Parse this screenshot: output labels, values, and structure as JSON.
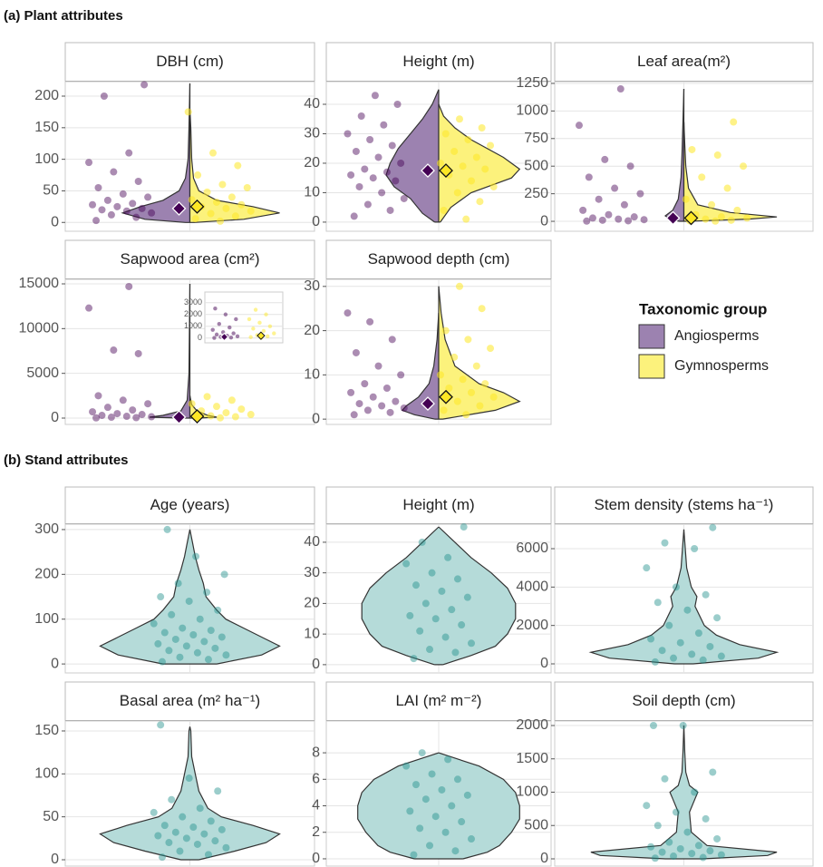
{
  "figure": {
    "sections": [
      "(a) Plant attributes",
      "(b) Stand attributes"
    ],
    "legend_title": "Taxonomic group"
  },
  "chart_data": [
    {
      "type": "violin",
      "title": "DBH (cm)",
      "ylim": [
        -14,
        223
      ],
      "yticks": [
        0,
        50,
        100,
        150,
        200
      ],
      "grid": true,
      "series": [
        {
          "name": "Angiosperms",
          "color": "#440154",
          "fill": "#9c82b0",
          "mean": 22,
          "values": [
            3,
            8,
            12,
            15,
            18,
            20,
            22,
            25,
            28,
            30,
            35,
            40,
            45,
            55,
            65,
            80,
            95,
            110,
            200,
            218
          ],
          "density": {
            "y": [
              0,
              5,
              15,
              25,
              35,
              50,
              70,
              100,
              150,
              220
            ],
            "width": [
              0.05,
              0.5,
              0.75,
              0.55,
              0.3,
              0.12,
              0.05,
              0.02,
              0.01,
              0
            ]
          }
        },
        {
          "name": "Gymnosperms",
          "color": "#fde725",
          "fill": "#fcf27c",
          "mean": 25,
          "values": [
            2,
            6,
            10,
            14,
            18,
            22,
            25,
            28,
            32,
            36,
            40,
            48,
            55,
            60,
            75,
            90,
            110,
            175
          ],
          "density": {
            "y": [
              0,
              5,
              15,
              25,
              35,
              50,
              70,
              100,
              150,
              180
            ],
            "width": [
              0.05,
              0.6,
              1.0,
              0.7,
              0.3,
              0.1,
              0.04,
              0.02,
              0.01,
              0
            ]
          }
        }
      ]
    },
    {
      "type": "violin",
      "title": "Height (m)",
      "ylim": [
        -3.1,
        47.7
      ],
      "yticks": [
        0,
        10,
        20,
        30,
        40
      ],
      "grid": true,
      "series": [
        {
          "color": "#440154",
          "fill": "#9c82b0",
          "mean": 17.5,
          "values": [
            2,
            4,
            6,
            8,
            10,
            12,
            14,
            15,
            16,
            17,
            18,
            20,
            22,
            24,
            26,
            28,
            30,
            33,
            36,
            40,
            43
          ],
          "density": {
            "y": [
              0,
              3,
              8,
              12,
              16,
              20,
              25,
              30,
              35,
              40,
              45
            ],
            "width": [
              0.05,
              0.2,
              0.35,
              0.55,
              0.65,
              0.6,
              0.5,
              0.35,
              0.2,
              0.08,
              0
            ]
          }
        },
        {
          "color": "#fde725",
          "fill": "#fcf27c",
          "mean": 17.5,
          "values": [
            1,
            4,
            7,
            10,
            12,
            14,
            16,
            18,
            19,
            20,
            22,
            24,
            26,
            28,
            30,
            32,
            35
          ],
          "density": {
            "y": [
              0,
              5,
              10,
              15,
              18,
              22,
              28,
              32,
              36,
              40
            ],
            "width": [
              0.02,
              0.15,
              0.4,
              0.9,
              1.0,
              0.8,
              0.4,
              0.2,
              0.06,
              0
            ]
          }
        }
      ]
    },
    {
      "type": "violin",
      "title": "Leaf area(m²)",
      "ylim": [
        -90,
        1266
      ],
      "yticks": [
        0,
        250,
        500,
        750,
        1000,
        1250
      ],
      "grid": true,
      "series": [
        {
          "color": "#440154",
          "fill": "#9c82b0",
          "mean": 30,
          "values": [
            2,
            5,
            10,
            15,
            20,
            30,
            40,
            60,
            100,
            150,
            200,
            250,
            300,
            400,
            500,
            560,
            870,
            1200
          ],
          "density": {
            "y": [
              0,
              20,
              50,
              100,
              200,
              400,
              600,
              900,
              1200
            ],
            "width": [
              0.05,
              0.15,
              0.2,
              0.12,
              0.06,
              0.03,
              0.02,
              0.01,
              0
            ]
          }
        },
        {
          "color": "#fde725",
          "fill": "#fcf27c",
          "mean": 30,
          "values": [
            2,
            5,
            10,
            20,
            30,
            40,
            60,
            100,
            150,
            200,
            300,
            400,
            500,
            600,
            650,
            900
          ],
          "density": {
            "y": [
              0,
              20,
              40,
              80,
              150,
              300,
              500,
              700,
              900
            ],
            "width": [
              0.05,
              0.7,
              1.0,
              0.5,
              0.15,
              0.05,
              0.02,
              0.01,
              0
            ]
          }
        }
      ]
    },
    {
      "type": "violin",
      "title": "Sapwood area (cm²)",
      "ylim": [
        -709,
        15507
      ],
      "yticks": [
        0,
        5000,
        10000,
        15000
      ],
      "grid": true,
      "inset": {
        "ylim": [
          -400,
          3900
        ],
        "yticks": [
          0,
          1000,
          2000,
          3000
        ]
      },
      "series": [
        {
          "color": "#440154",
          "fill": "#9c82b0",
          "mean": 100,
          "values": [
            20,
            50,
            100,
            150,
            200,
            300,
            400,
            500,
            700,
            900,
            1200,
            1600,
            2000,
            2500,
            7200,
            7600,
            12300,
            14700
          ],
          "density": {
            "y": [
              0,
              100,
              300,
              800,
              2000,
              5000,
              10000,
              15000
            ],
            "width": [
              0.1,
              0.45,
              0.3,
              0.1,
              0.03,
              0.01,
              0.005,
              0
            ]
          }
        },
        {
          "color": "#fde725",
          "fill": "#fcf27c",
          "mean": 200,
          "values": [
            30,
            80,
            150,
            250,
            400,
            600,
            800,
            1000,
            1300,
            1600,
            2000,
            2400
          ],
          "density": {
            "y": [
              0,
              100,
              300,
              800,
              1500,
              2500
            ],
            "width": [
              0.1,
              0.3,
              0.2,
              0.08,
              0.02,
              0
            ]
          }
        }
      ]
    },
    {
      "type": "violin",
      "title": "Sapwood depth (cm)",
      "ylim": [
        -1.2,
        31.6
      ],
      "yticks": [
        0,
        10,
        20,
        30
      ],
      "grid": true,
      "series": [
        {
          "color": "#440154",
          "fill": "#9c82b0",
          "mean": 3.5,
          "values": [
            1,
            1.5,
            2,
            2.5,
            3,
            3.5,
            4,
            5,
            6,
            7,
            8,
            10,
            12,
            15,
            18,
            22,
            24
          ],
          "density": {
            "y": [
              0,
              1,
              2,
              3,
              5,
              8,
              12,
              18,
              24
            ],
            "width": [
              0.05,
              0.3,
              0.45,
              0.4,
              0.25,
              0.12,
              0.06,
              0.02,
              0
            ]
          }
        },
        {
          "color": "#fde725",
          "fill": "#fcf27c",
          "mean": 5,
          "values": [
            1,
            2,
            3,
            4,
            5,
            6,
            7,
            8,
            9,
            10,
            12,
            14,
            16,
            18,
            20,
            25,
            30
          ],
          "density": {
            "y": [
              0,
              2,
              4,
              6,
              8,
              12,
              18,
              24,
              30
            ],
            "width": [
              0.05,
              0.7,
              1.0,
              0.8,
              0.5,
              0.2,
              0.08,
              0.03,
              0
            ]
          }
        }
      ]
    },
    {
      "type": "violin",
      "title": "Age (years)",
      "ylim": [
        -20,
        312
      ],
      "yticks": [
        0,
        100,
        200,
        300
      ],
      "grid": true,
      "series": [
        {
          "color": "#21918c",
          "fill": "#b5dbd9",
          "values": [
            5,
            10,
            15,
            20,
            25,
            30,
            35,
            40,
            45,
            50,
            55,
            60,
            65,
            70,
            75,
            80,
            90,
            100,
            110,
            120,
            140,
            150,
            160,
            180,
            200,
            240,
            300
          ],
          "density": {
            "y": [
              0,
              20,
              40,
              60,
              80,
              100,
              120,
              150,
              180,
              210,
              240,
              270,
              300
            ],
            "width": [
              0.3,
              0.8,
              1.0,
              0.8,
              0.6,
              0.4,
              0.3,
              0.18,
              0.15,
              0.1,
              0.06,
              0.03,
              0
            ]
          }
        }
      ]
    },
    {
      "type": "violin",
      "title": "Height (m)",
      "ylim": [
        -2.7,
        45.9
      ],
      "yticks": [
        0,
        10,
        20,
        30,
        40
      ],
      "grid": true,
      "series": [
        {
          "color": "#21918c",
          "fill": "#b5dbd9",
          "values": [
            2,
            4,
            5,
            7,
            9,
            11,
            13,
            15,
            16,
            18,
            20,
            22,
            24,
            26,
            28,
            30,
            33,
            35,
            40,
            45
          ],
          "density": {
            "y": [
              0,
              3,
              6,
              10,
              15,
              20,
              25,
              30,
              35,
              40,
              45
            ],
            "width": [
              0.05,
              0.4,
              0.7,
              0.85,
              0.95,
              0.95,
              0.85,
              0.65,
              0.4,
              0.2,
              0
            ]
          }
        }
      ]
    },
    {
      "type": "violin",
      "title": "Stem density (stems ha⁻¹)",
      "ylim": [
        -472,
        7275
      ],
      "yticks": [
        0,
        2000,
        4000,
        6000
      ],
      "grid": true,
      "series": [
        {
          "color": "#21918c",
          "fill": "#b5dbd9",
          "values": [
            100,
            200,
            300,
            400,
            500,
            700,
            900,
            1100,
            1300,
            1600,
            2000,
            2400,
            2800,
            3200,
            3600,
            4000,
            5000,
            6000,
            6300,
            7100
          ],
          "density": {
            "y": [
              0,
              300,
              600,
              1000,
              1500,
              2000,
              3000,
              3500,
              4000,
              5000,
              7000
            ],
            "width": [
              0.1,
              0.8,
              1.0,
              0.6,
              0.35,
              0.22,
              0.12,
              0.14,
              0.08,
              0.03,
              0
            ]
          }
        }
      ]
    },
    {
      "type": "violin",
      "title": "Basal area (m² ha⁻¹)",
      "ylim": [
        -7.4,
        161.6
      ],
      "yticks": [
        0,
        50,
        100,
        150
      ],
      "grid": true,
      "series": [
        {
          "color": "#21918c",
          "fill": "#b5dbd9",
          "values": [
            3,
            6,
            10,
            14,
            18,
            20,
            22,
            25,
            28,
            30,
            32,
            35,
            38,
            40,
            45,
            50,
            55,
            60,
            70,
            80,
            95,
            157
          ],
          "density": {
            "y": [
              0,
              10,
              20,
              30,
              40,
              50,
              60,
              70,
              80,
              100,
              120,
              150,
              155
            ],
            "width": [
              0.1,
              0.5,
              0.85,
              1.0,
              0.7,
              0.35,
              0.2,
              0.15,
              0.1,
              0.06,
              0.02,
              0.01,
              0
            ]
          }
        }
      ]
    },
    {
      "type": "violin",
      "title": "LAI (m² m⁻²)",
      "ylim": [
        -0.55,
        10.4
      ],
      "yticks": [
        0,
        2,
        4,
        6,
        8
      ],
      "grid": true,
      "series": [
        {
          "color": "#21918c",
          "fill": "#b5dbd9",
          "values": [
            0.3,
            0.6,
            1,
            1.5,
            2,
            2.3,
            2.8,
            3.2,
            3.6,
            4,
            4.5,
            4.8,
            5.2,
            5.6,
            6,
            6.4,
            7,
            7.5,
            8
          ],
          "density": {
            "y": [
              0,
              0.5,
              1,
              2,
              3,
              4,
              5,
              6,
              7,
              8
            ],
            "width": [
              0.3,
              0.6,
              0.75,
              0.9,
              1.0,
              1.0,
              0.95,
              0.8,
              0.5,
              0
            ]
          }
        }
      ]
    },
    {
      "type": "violin",
      "title": "Soil depth (cm)",
      "ylim": [
        -109,
        2068
      ],
      "yticks": [
        0,
        500,
        1000,
        1500,
        2000
      ],
      "grid": true,
      "series": [
        {
          "color": "#21918c",
          "fill": "#b5dbd9",
          "values": [
            10,
            20,
            40,
            60,
            80,
            100,
            120,
            150,
            180,
            200,
            250,
            300,
            400,
            500,
            600,
            700,
            800,
            1000,
            1200,
            1300,
            2000,
            2000
          ],
          "density": {
            "y": [
              0,
              50,
              100,
              200,
              400,
              700,
              900,
              1000,
              1100,
              1300,
              1600,
              2000
            ],
            "width": [
              0.2,
              0.9,
              1.0,
              0.25,
              0.08,
              0.06,
              0.12,
              0.15,
              0.06,
              0.02,
              0.01,
              0
            ]
          }
        }
      ]
    }
  ]
}
